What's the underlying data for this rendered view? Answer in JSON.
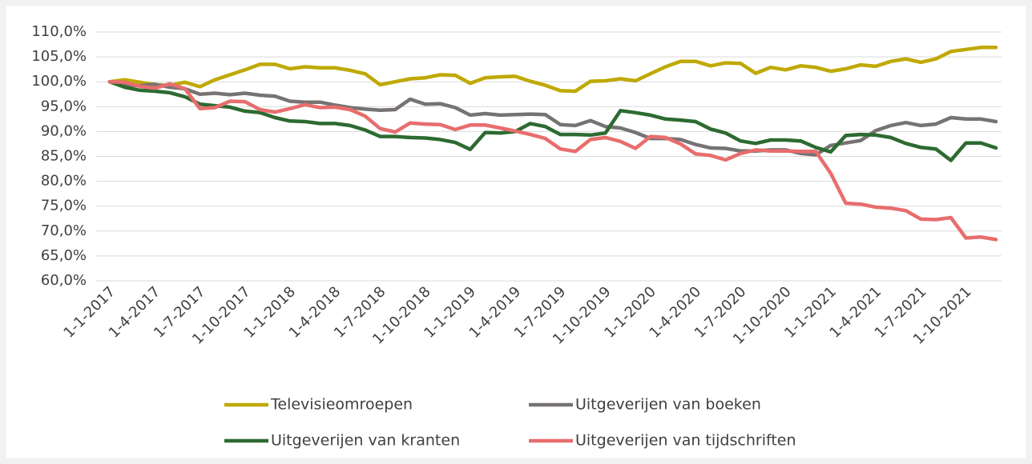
{
  "chart_data": {
    "type": "line",
    "categories": [
      "1-1-2017",
      null,
      null,
      "1-4-2017",
      null,
      null,
      "1-7-2017",
      null,
      null,
      "1-10-2017",
      null,
      null,
      "1-1-2018",
      null,
      null,
      "1-4-2018",
      null,
      null,
      "1-7-2018",
      null,
      null,
      "1-10-2018",
      null,
      null,
      "1-1-2019",
      null,
      null,
      "1-4-2019",
      null,
      null,
      "1-7-2019",
      null,
      null,
      "1-10-2019",
      null,
      null,
      "1-1-2020",
      null,
      null,
      "1-4-2020",
      null,
      null,
      "1-7-2020",
      null,
      null,
      "1-10-2020",
      null,
      null,
      "1-1-2021",
      null,
      null,
      "1-4-2021",
      null,
      null,
      "1-7-2021",
      null,
      null,
      "1-10-2021",
      null,
      null
    ],
    "series": [
      {
        "name": "Televisieomroepen",
        "color": "#bfa900",
        "values": [
          100,
          100.4,
          99.9,
          99.4,
          99.3,
          99.9,
          99.0,
          100.4,
          101.4,
          102.4,
          103.5,
          103.5,
          102.6,
          103.0,
          102.8,
          102.8,
          102.3,
          101.6,
          99.4,
          100.0,
          100.6,
          100.8,
          101.4,
          101.3,
          99.7,
          100.8,
          101.0,
          101.1,
          100.1,
          99.3,
          98.2,
          98.1,
          100.1,
          100.2,
          100.6,
          100.2,
          101.6,
          103.0,
          104.1,
          104.1,
          103.2,
          103.8,
          103.7,
          101.7,
          102.9,
          102.4,
          103.2,
          102.9,
          102.1,
          102.6,
          103.4,
          103.1,
          104.1,
          104.6,
          103.9,
          104.6,
          106.1,
          106.5,
          106.9,
          106.9
        ]
      },
      {
        "name": "Uitgeverijen van boeken",
        "color": "#777373",
        "values": [
          100,
          99.4,
          99.2,
          99.5,
          98.9,
          98.6,
          97.5,
          97.7,
          97.4,
          97.7,
          97.3,
          97.1,
          96.1,
          95.9,
          95.9,
          95.3,
          94.8,
          94.5,
          94.3,
          94.4,
          96.5,
          95.5,
          95.6,
          94.8,
          93.3,
          93.6,
          93.3,
          93.4,
          93.5,
          93.4,
          91.4,
          91.2,
          92.2,
          91.0,
          90.7,
          89.8,
          88.6,
          88.6,
          88.4,
          87.4,
          86.7,
          86.6,
          86.1,
          86.1,
          86.3,
          86.3,
          85.6,
          85.3,
          87.2,
          87.7,
          88.2,
          90.2,
          91.2,
          91.8,
          91.2,
          91.5,
          92.8,
          92.5,
          92.5,
          92.0
        ]
      },
      {
        "name": "Uitgeverijen van kranten",
        "color": "#2d6a31",
        "values": [
          100,
          98.9,
          98.3,
          98.1,
          97.8,
          97.0,
          95.5,
          95.2,
          94.9,
          94.1,
          93.8,
          92.8,
          92.1,
          92.0,
          91.6,
          91.6,
          91.2,
          90.3,
          89.0,
          89.0,
          88.8,
          88.7,
          88.4,
          87.8,
          86.4,
          89.8,
          89.7,
          90.0,
          91.6,
          91.0,
          89.4,
          89.4,
          89.3,
          89.7,
          94.2,
          93.8,
          93.3,
          92.5,
          92.3,
          92.0,
          90.5,
          89.7,
          88.1,
          87.6,
          88.3,
          88.3,
          88.1,
          86.8,
          85.9,
          89.2,
          89.4,
          89.3,
          88.8,
          87.6,
          86.8,
          86.5,
          84.2,
          87.7,
          87.7,
          86.7
        ]
      },
      {
        "name": "Uitgeverijen van tijdschriften",
        "color": "#e86d6d",
        "values": [
          100,
          99.9,
          99.1,
          98.7,
          99.6,
          98.6,
          94.6,
          94.8,
          96.1,
          96.0,
          94.4,
          93.9,
          94.6,
          95.4,
          94.8,
          94.9,
          94.4,
          93.1,
          90.6,
          89.9,
          91.7,
          91.5,
          91.4,
          90.4,
          91.3,
          91.3,
          90.7,
          90.1,
          89.4,
          88.6,
          86.5,
          86.0,
          88.4,
          88.8,
          88.0,
          86.6,
          89.0,
          88.8,
          87.5,
          85.5,
          85.2,
          84.3,
          85.6,
          86.3,
          86.1,
          86.1,
          86.0,
          86.0,
          81.6,
          75.6,
          75.4,
          74.8,
          74.6,
          74.1,
          72.4,
          72.3,
          72.7,
          68.6,
          68.8,
          68.3
        ]
      }
    ],
    "ylim": [
      60,
      110
    ],
    "yticks": [
      {
        "value": 60,
        "label": "60,0%"
      },
      {
        "value": 65,
        "label": "65,0%"
      },
      {
        "value": 70,
        "label": "70,0%"
      },
      {
        "value": 75,
        "label": "75,0%"
      },
      {
        "value": 80,
        "label": "80,0%"
      },
      {
        "value": 85,
        "label": "85,0%"
      },
      {
        "value": 90,
        "label": "90,0%"
      },
      {
        "value": 95,
        "label": "95,0%"
      },
      {
        "value": 100,
        "label": "100,0%"
      },
      {
        "value": 105,
        "label": "105,0%"
      },
      {
        "value": 110,
        "label": "110,0%"
      }
    ],
    "grid": true
  }
}
